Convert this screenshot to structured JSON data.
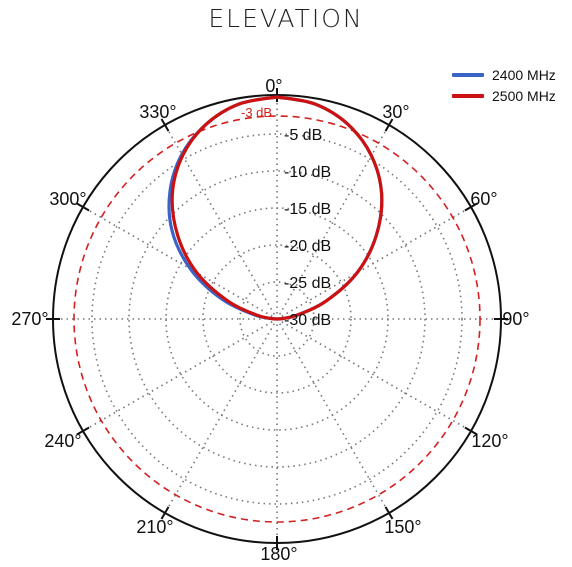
{
  "chart_data": {
    "type": "polar",
    "title": "ELEVATION",
    "radial_ticks": [
      "-5 dB",
      "-10 dB",
      "-15 dB",
      "-20 dB",
      "-25 dB",
      "-30 dB"
    ],
    "radial_tick_values": [
      -5,
      -10,
      -15,
      -20,
      -25,
      -30
    ],
    "rlim": [
      -30,
      0
    ],
    "reference_line": {
      "label": "-3 dB",
      "value": -3
    },
    "angle_ticks": [
      "0°",
      "30°",
      "60°",
      "90°",
      "120°",
      "150°",
      "180°",
      "210°",
      "240°",
      "270°",
      "300°",
      "330°"
    ],
    "angle_tick_values": [
      0,
      30,
      60,
      90,
      120,
      150,
      180,
      210,
      240,
      270,
      300,
      330
    ],
    "grid": true,
    "legend_position": "top-right",
    "series": [
      {
        "name": "2400 MHz",
        "color": "#3a63c7",
        "angles": [
          0,
          10,
          20,
          30,
          40,
          50,
          60,
          70,
          80,
          90,
          270,
          280,
          290,
          300,
          310,
          320,
          330,
          340,
          350,
          360
        ],
        "values": [
          0,
          -0.5,
          -2,
          -4.5,
          -8,
          -12.5,
          -17.5,
          -23,
          -27.5,
          -30,
          -30,
          -27,
          -22,
          -16.5,
          -11.5,
          -7.5,
          -4.3,
          -2,
          -0.5,
          0
        ]
      },
      {
        "name": "2500 MHz",
        "color": "#cc1111",
        "angles": [
          0,
          10,
          20,
          30,
          40,
          50,
          60,
          70,
          80,
          90,
          270,
          280,
          290,
          300,
          310,
          320,
          330,
          340,
          350,
          360
        ],
        "values": [
          0,
          -0.5,
          -2,
          -4.5,
          -8,
          -12.5,
          -17.5,
          -23,
          -27.5,
          -30,
          -30,
          -27.5,
          -23,
          -17.5,
          -12.5,
          -8,
          -4.5,
          -2,
          -0.5,
          0
        ]
      }
    ]
  }
}
